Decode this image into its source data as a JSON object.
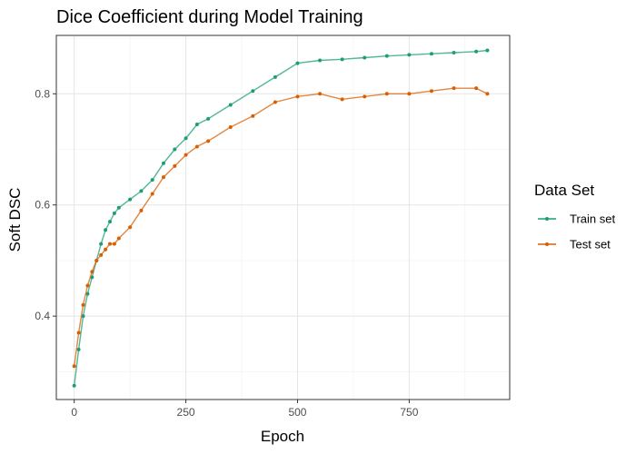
{
  "chart_data": {
    "type": "line",
    "title": "Dice Coefficient during Model Training",
    "xlabel": "Epoch",
    "ylabel": "Soft DSC",
    "xlim": [
      -40,
      975
    ],
    "ylim": [
      0.25,
      0.905
    ],
    "x_ticks": [
      0,
      250,
      500,
      750
    ],
    "x_tick_labels": [
      "0",
      "250",
      "500",
      "750"
    ],
    "y_ticks": [
      0.4,
      0.6,
      0.8
    ],
    "y_tick_labels": [
      "0.4",
      "0.6",
      "0.8"
    ],
    "grid": true,
    "legend": {
      "title": "Data Set",
      "position": "right"
    },
    "series": [
      {
        "name": "Train set",
        "color": "#1b9e77",
        "x": [
          0,
          10,
          20,
          30,
          40,
          50,
          60,
          70,
          80,
          90,
          100,
          125,
          150,
          175,
          200,
          225,
          250,
          275,
          300,
          350,
          400,
          450,
          500,
          550,
          600,
          650,
          700,
          750,
          800,
          850,
          900,
          925
        ],
        "y": [
          0.275,
          0.34,
          0.4,
          0.44,
          0.47,
          0.5,
          0.53,
          0.555,
          0.57,
          0.585,
          0.595,
          0.61,
          0.625,
          0.645,
          0.675,
          0.7,
          0.72,
          0.745,
          0.755,
          0.78,
          0.805,
          0.83,
          0.855,
          0.86,
          0.862,
          0.865,
          0.868,
          0.87,
          0.872,
          0.874,
          0.876,
          0.878
        ]
      },
      {
        "name": "Test set",
        "color": "#d95f02",
        "x": [
          0,
          10,
          20,
          30,
          40,
          50,
          60,
          70,
          80,
          90,
          100,
          125,
          150,
          175,
          200,
          225,
          250,
          275,
          300,
          350,
          400,
          450,
          500,
          550,
          600,
          650,
          700,
          750,
          800,
          850,
          900,
          925
        ],
        "y": [
          0.31,
          0.37,
          0.42,
          0.455,
          0.48,
          0.5,
          0.51,
          0.52,
          0.53,
          0.53,
          0.54,
          0.56,
          0.59,
          0.62,
          0.65,
          0.67,
          0.69,
          0.705,
          0.715,
          0.74,
          0.76,
          0.785,
          0.795,
          0.8,
          0.79,
          0.795,
          0.8,
          0.8,
          0.805,
          0.81,
          0.81,
          0.8
        ]
      }
    ]
  }
}
